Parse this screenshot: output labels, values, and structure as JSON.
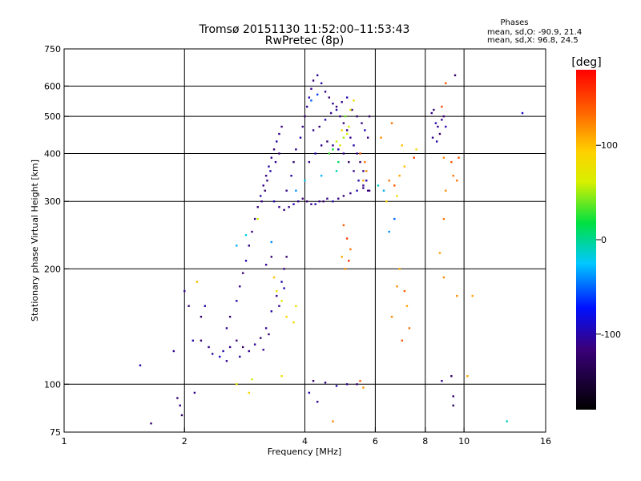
{
  "chart_data": {
    "type": "scatter",
    "title": "Tromsø 20151130 11:52:00–11:53:43",
    "subtitle": "RwPretec (8p)",
    "stats": {
      "heading": "Phases",
      "line_o": "mean, sd,O: -90.9, 21.4",
      "line_x": "mean, sd,X: 96.8, 24.5"
    },
    "xlabel": "Frequency [MHz]",
    "ylabel": "Stationary phase Virtual Height [km]",
    "x_scale": "log",
    "y_scale": "log",
    "xlim": [
      1,
      16
    ],
    "ylim": [
      75,
      750
    ],
    "x_ticks": [
      1,
      2,
      4,
      6,
      8,
      10,
      16
    ],
    "x_tick_labels": [
      "1",
      "2",
      "4",
      "6",
      "8",
      "10",
      "16"
    ],
    "y_ticks": [
      75,
      100,
      200,
      300,
      400,
      500,
      600,
      750
    ],
    "y_tick_labels": [
      "75",
      "100",
      "200",
      "300",
      "400",
      "500",
      "600",
      "750"
    ],
    "x_gridlines": [
      2,
      4,
      6,
      8,
      10
    ],
    "y_gridlines": [
      100,
      200,
      300,
      400,
      500,
      600
    ],
    "grid": true,
    "colorbar": {
      "label": "[deg]",
      "range": [
        -180,
        180
      ],
      "tick_values": [
        100,
        0,
        -100
      ],
      "tick_labels": [
        "100",
        "0",
        "-100"
      ]
    },
    "series": [
      {
        "points": [
          [
            1.55,
            112,
            -95
          ],
          [
            1.65,
            79,
            -120
          ],
          [
            1.88,
            122,
            -110
          ],
          [
            1.92,
            92,
            -120
          ],
          [
            1.95,
            88,
            -110
          ],
          [
            1.97,
            83,
            -130
          ],
          [
            2.05,
            160,
            -120
          ],
          [
            2.1,
            130,
            -100
          ],
          [
            2.12,
            95,
            -110
          ],
          [
            2.2,
            150,
            -120
          ],
          [
            2.3,
            125,
            -110
          ],
          [
            2.35,
            120,
            -100
          ],
          [
            2.45,
            118,
            -90
          ],
          [
            2.5,
            122,
            -100
          ],
          [
            2.6,
            125,
            -110
          ],
          [
            2.7,
            130,
            -115
          ],
          [
            2.8,
            125,
            -120
          ],
          [
            2.9,
            122,
            -110
          ],
          [
            3.0,
            127,
            -105
          ],
          [
            3.1,
            132,
            -120
          ],
          [
            3.2,
            140,
            -110
          ],
          [
            3.3,
            155,
            -100
          ],
          [
            3.4,
            170,
            -110
          ],
          [
            3.5,
            185,
            -100
          ],
          [
            3.55,
            200,
            -110
          ],
          [
            3.6,
            215,
            -120
          ],
          [
            2.55,
            140,
            -110
          ],
          [
            2.6,
            150,
            -120
          ],
          [
            2.7,
            165,
            -100
          ],
          [
            2.75,
            180,
            -110
          ],
          [
            2.8,
            195,
            -120
          ],
          [
            2.85,
            210,
            -100
          ],
          [
            2.9,
            230,
            -110
          ],
          [
            2.95,
            250,
            -115
          ],
          [
            3.0,
            270,
            -110
          ],
          [
            3.05,
            290,
            -120
          ],
          [
            3.1,
            310,
            -100
          ],
          [
            3.15,
            330,
            -110
          ],
          [
            3.2,
            350,
            -120
          ],
          [
            3.25,
            370,
            -100
          ],
          [
            3.3,
            390,
            -110
          ],
          [
            3.35,
            410,
            -120
          ],
          [
            3.4,
            430,
            -100
          ],
          [
            3.45,
            450,
            -110
          ],
          [
            3.5,
            470,
            -115
          ],
          [
            3.45,
            400,
            -120
          ],
          [
            3.38,
            380,
            -110
          ],
          [
            3.28,
            360,
            -100
          ],
          [
            3.22,
            340,
            -110
          ],
          [
            3.18,
            320,
            -120
          ],
          [
            3.12,
            300,
            -110
          ],
          [
            3.35,
            300,
            -100
          ],
          [
            3.45,
            290,
            -110
          ],
          [
            3.55,
            285,
            -120
          ],
          [
            3.65,
            290,
            -110
          ],
          [
            3.75,
            295,
            -100
          ],
          [
            3.85,
            300,
            -110
          ],
          [
            3.95,
            305,
            -115
          ],
          [
            4.05,
            300,
            -120
          ],
          [
            4.15,
            295,
            -110
          ],
          [
            4.25,
            295,
            -100
          ],
          [
            4.35,
            300,
            -110
          ],
          [
            4.45,
            300,
            -120
          ],
          [
            4.55,
            305,
            -110
          ],
          [
            4.7,
            300,
            -100
          ],
          [
            4.85,
            305,
            -110
          ],
          [
            5.0,
            310,
            -120
          ],
          [
            5.2,
            315,
            -110
          ],
          [
            5.4,
            320,
            -100
          ],
          [
            5.6,
            325,
            -110
          ],
          [
            3.6,
            320,
            -110
          ],
          [
            3.7,
            350,
            -100
          ],
          [
            3.75,
            380,
            -120
          ],
          [
            3.8,
            410,
            -110
          ],
          [
            3.9,
            440,
            -100
          ],
          [
            3.95,
            470,
            -110
          ],
          [
            4.0,
            500,
            -120
          ],
          [
            4.05,
            530,
            -110
          ],
          [
            4.1,
            560,
            -100
          ],
          [
            4.15,
            590,
            -110
          ],
          [
            4.2,
            620,
            -120
          ],
          [
            4.3,
            640,
            -110
          ],
          [
            4.4,
            610,
            -100
          ],
          [
            4.5,
            580,
            -110
          ],
          [
            4.6,
            560,
            -120
          ],
          [
            4.7,
            540,
            -110
          ],
          [
            4.8,
            520,
            -100
          ],
          [
            4.9,
            500,
            -110
          ],
          [
            5.0,
            480,
            -115
          ],
          [
            5.1,
            460,
            -120
          ],
          [
            5.2,
            440,
            -110
          ],
          [
            5.3,
            420,
            -100
          ],
          [
            5.4,
            400,
            -110
          ],
          [
            5.5,
            380,
            -120
          ],
          [
            5.6,
            360,
            -110
          ],
          [
            5.7,
            340,
            -100
          ],
          [
            5.8,
            320,
            -110
          ],
          [
            4.2,
            460,
            -110
          ],
          [
            4.35,
            470,
            -120
          ],
          [
            4.5,
            490,
            -100
          ],
          [
            4.65,
            510,
            -110
          ],
          [
            4.8,
            530,
            -120
          ],
          [
            4.95,
            545,
            -110
          ],
          [
            5.1,
            560,
            -100
          ],
          [
            5.25,
            520,
            -110
          ],
          [
            5.4,
            500,
            -120
          ],
          [
            5.55,
            480,
            -110
          ],
          [
            5.65,
            460,
            -100
          ],
          [
            5.75,
            440,
            -110
          ],
          [
            5.8,
            500,
            -120
          ],
          [
            4.1,
            380,
            -110
          ],
          [
            4.25,
            400,
            -100
          ],
          [
            4.4,
            420,
            -110
          ],
          [
            4.55,
            430,
            -120
          ],
          [
            4.7,
            420,
            -110
          ],
          [
            4.85,
            410,
            -100
          ],
          [
            5.0,
            400,
            -110
          ],
          [
            5.15,
            380,
            -120
          ],
          [
            5.3,
            360,
            -110
          ],
          [
            5.45,
            340,
            -100
          ],
          [
            5.6,
            330,
            -110
          ],
          [
            5.75,
            320,
            -120
          ],
          [
            4.8,
            430,
            60
          ],
          [
            4.9,
            420,
            70
          ],
          [
            5.0,
            440,
            50
          ],
          [
            5.1,
            450,
            60
          ],
          [
            5.05,
            500,
            40
          ],
          [
            5.2,
            520,
            70
          ],
          [
            5.3,
            550,
            80
          ],
          [
            4.95,
            460,
            90
          ],
          [
            5.15,
            470,
            60
          ],
          [
            4.6,
            400,
            30
          ],
          [
            4.7,
            410,
            20
          ],
          [
            4.85,
            380,
            10
          ],
          [
            5.6,
            340,
            110
          ],
          [
            5.7,
            360,
            120
          ],
          [
            5.65,
            380,
            130
          ],
          [
            5.5,
            400,
            140
          ],
          [
            6.3,
            320,
            120
          ],
          [
            6.5,
            340,
            130
          ],
          [
            6.7,
            330,
            140
          ],
          [
            6.9,
            350,
            110
          ],
          [
            7.1,
            370,
            100
          ],
          [
            6.4,
            300,
            90
          ],
          [
            6.8,
            310,
            80
          ],
          [
            7.0,
            420,
            100
          ],
          [
            6.2,
            440,
            120
          ],
          [
            6.6,
            480,
            130
          ],
          [
            7.5,
            390,
            150
          ],
          [
            7.6,
            410,
            80
          ],
          [
            6.1,
            330,
            -10
          ],
          [
            6.3,
            320,
            -30
          ],
          [
            6.5,
            250,
            -40
          ],
          [
            6.7,
            270,
            -50
          ],
          [
            5.0,
            260,
            140
          ],
          [
            5.1,
            240,
            150
          ],
          [
            5.2,
            225,
            130
          ],
          [
            5.15,
            210,
            160
          ],
          [
            5.05,
            200,
            120
          ],
          [
            4.95,
            215,
            110
          ],
          [
            3.35,
            190,
            100
          ],
          [
            3.4,
            175,
            80
          ],
          [
            3.5,
            165,
            70
          ],
          [
            3.6,
            150,
            90
          ],
          [
            3.75,
            145,
            85
          ],
          [
            3.8,
            160,
            75
          ],
          [
            2.7,
            100,
            70
          ],
          [
            2.9,
            95,
            90
          ],
          [
            2.95,
            103,
            60
          ],
          [
            3.5,
            105,
            80
          ],
          [
            3.05,
            270,
            60
          ],
          [
            2.85,
            245,
            -20
          ],
          [
            2.7,
            230,
            -30
          ],
          [
            3.3,
            235,
            -40
          ],
          [
            3.8,
            320,
            -40
          ],
          [
            4.0,
            340,
            -20
          ],
          [
            4.4,
            350,
            -30
          ],
          [
            4.8,
            360,
            -10
          ],
          [
            4.15,
            550,
            -50
          ],
          [
            4.3,
            570,
            -60
          ],
          [
            8.3,
            510,
            -110
          ],
          [
            8.4,
            520,
            -120
          ],
          [
            8.5,
            480,
            -100
          ],
          [
            8.6,
            470,
            -110
          ],
          [
            8.7,
            450,
            -120
          ],
          [
            8.8,
            490,
            -110
          ],
          [
            8.9,
            500,
            -115
          ],
          [
            9.0,
            470,
            -100
          ],
          [
            8.35,
            440,
            -110
          ],
          [
            8.55,
            430,
            -100
          ],
          [
            8.8,
            530,
            150
          ],
          [
            9.5,
            640,
            -120
          ],
          [
            9.0,
            610,
            140
          ],
          [
            8.9,
            390,
            120
          ],
          [
            9.3,
            380,
            140
          ],
          [
            9.4,
            350,
            130
          ],
          [
            9.6,
            340,
            130
          ],
          [
            9.7,
            390,
            140
          ],
          [
            10.5,
            170,
            110
          ],
          [
            9.3,
            105,
            -130
          ],
          [
            9.4,
            93,
            -120
          ],
          [
            9.4,
            88,
            -130
          ],
          [
            8.8,
            102,
            -110
          ],
          [
            9.6,
            170,
            120
          ],
          [
            9.0,
            320,
            120
          ],
          [
            8.9,
            270,
            130
          ],
          [
            8.7,
            220,
            110
          ],
          [
            8.9,
            190,
            120
          ],
          [
            10.2,
            105,
            110
          ],
          [
            12.8,
            80,
            -10
          ],
          [
            14.0,
            510,
            -90
          ],
          [
            4.2,
            102,
            -120
          ],
          [
            4.5,
            101,
            -110
          ],
          [
            4.8,
            99,
            -100
          ],
          [
            5.1,
            100,
            -110
          ],
          [
            5.4,
            100,
            -120
          ],
          [
            5.6,
            98,
            120
          ],
          [
            5.5,
            102,
            140
          ],
          [
            4.1,
            95,
            -100
          ],
          [
            4.3,
            90,
            -110
          ],
          [
            4.7,
            80,
            120
          ],
          [
            7.0,
            130,
            140
          ],
          [
            6.6,
            150,
            120
          ],
          [
            7.2,
            160,
            110
          ],
          [
            6.8,
            180,
            120
          ],
          [
            7.3,
            140,
            130
          ],
          [
            6.9,
            200,
            110
          ],
          [
            7.1,
            175,
            140
          ],
          [
            2.15,
            185,
            100
          ],
          [
            2.2,
            130,
            -120
          ],
          [
            2.0,
            175,
            -110
          ],
          [
            2.25,
            160,
            -100
          ],
          [
            3.2,
            205,
            -110
          ],
          [
            3.3,
            215,
            -120
          ],
          [
            2.55,
            115,
            -110
          ],
          [
            2.75,
            118,
            -100
          ],
          [
            3.15,
            123,
            -110
          ],
          [
            3.25,
            135,
            -120
          ],
          [
            3.45,
            160,
            -110
          ],
          [
            3.55,
            178,
            -100
          ]
        ]
      }
    ]
  }
}
